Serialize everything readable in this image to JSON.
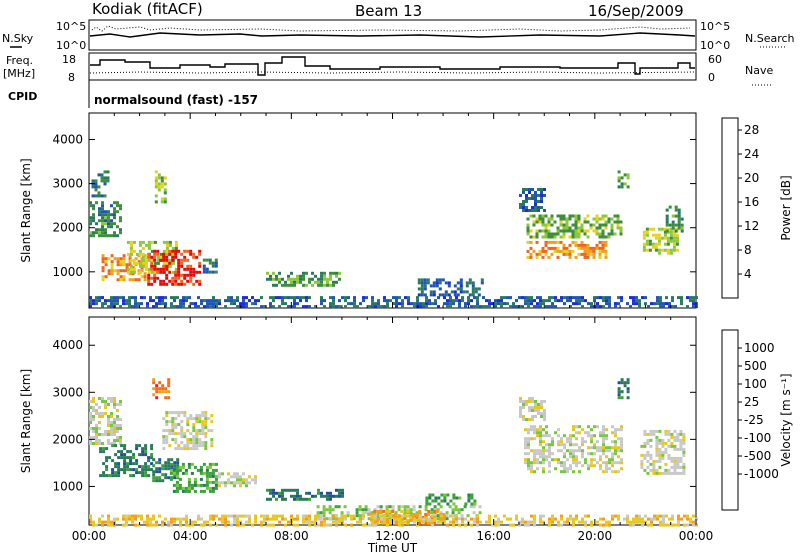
{
  "header": {
    "station": "Kodiak (fitACF)",
    "beam": "Beam 13",
    "date": "16/Sep/2009"
  },
  "summary_panel": {
    "left_label_sky": "N.Sky",
    "left_ticks_sky": [
      "10^5",
      "10^0"
    ],
    "right_label_search": "N.Search",
    "right_ticks_search": [
      "10^5",
      "10^0"
    ],
    "left_label_freq_1": "Freq.",
    "left_label_freq_2": "[MHz]",
    "left_ticks_freq": [
      "18",
      "8"
    ],
    "right_label_nave": "Nave",
    "right_ticks_nave": [
      "60",
      "0"
    ],
    "cpid_label": "CPID",
    "cpid_text": "normalsound (fast) -157"
  },
  "colors": {
    "power_scale": [
      "#1a2cdc",
      "#1f55b4",
      "#2a7a60",
      "#3e8e3e",
      "#8cc83c",
      "#e6d21e",
      "#f0a01e",
      "#f0641e",
      "#e60a0a"
    ],
    "velocity_scale": [
      "#1e28c8",
      "#2250a0",
      "#2a7a5a",
      "#3ca03c",
      "#78c83c",
      "#c8c8c8",
      "#e6c81e",
      "#f0a01e",
      "#f06e1e",
      "#e61e1e"
    ]
  },
  "chart_data": [
    {
      "type": "heatmap",
      "title": "Power",
      "xlabel": "",
      "ylabel": "Slant Range [km]",
      "xlim": [
        "00:00",
        "24:00"
      ],
      "ylim": [
        180,
        4600
      ],
      "y_ticks": [
        "4000",
        "3000",
        "2000",
        "1000"
      ],
      "colorbar_label": "Power [dB]",
      "colorbar_ticks": [
        "28",
        "24",
        "20",
        "16",
        "12",
        "8",
        "4"
      ],
      "colorbar_range": [
        0,
        30
      ],
      "regions": [
        {
          "t0": 0.5,
          "t1": 2.2,
          "r0": 800,
          "r1": 1400,
          "level": 22
        },
        {
          "t0": 1.5,
          "t1": 3.5,
          "r0": 1000,
          "r1": 1700,
          "level": 16
        },
        {
          "t0": 2.3,
          "t1": 4.4,
          "r0": 700,
          "r1": 1500,
          "level": 28
        },
        {
          "t0": 0.0,
          "t1": 1.2,
          "r0": 1800,
          "r1": 2600,
          "level": 10
        },
        {
          "t0": 0.1,
          "t1": 0.7,
          "r0": 2700,
          "r1": 3300,
          "level": 8
        },
        {
          "t0": 2.6,
          "t1": 3.0,
          "r0": 2600,
          "r1": 3300,
          "level": 16
        },
        {
          "t0": 4.5,
          "t1": 5.0,
          "r0": 1000,
          "r1": 1300,
          "level": 8
        },
        {
          "t0": 7.0,
          "t1": 10.0,
          "r0": 700,
          "r1": 1000,
          "level": 12
        },
        {
          "t0": 13.0,
          "t1": 15.5,
          "r0": 450,
          "r1": 850,
          "level": 6
        },
        {
          "t0": 17.3,
          "t1": 20.5,
          "r0": 1300,
          "r1": 1700,
          "level": 22
        },
        {
          "t0": 17.3,
          "t1": 21.0,
          "r0": 1800,
          "r1": 2300,
          "level": 14
        },
        {
          "t0": 21.9,
          "t1": 23.3,
          "r0": 1400,
          "r1": 2000,
          "level": 16
        },
        {
          "t0": 22.8,
          "t1": 23.4,
          "r0": 1900,
          "r1": 2500,
          "level": 10
        },
        {
          "t0": 17.0,
          "t1": 18.0,
          "r0": 2400,
          "r1": 2900,
          "level": 6
        },
        {
          "t0": 20.9,
          "t1": 21.3,
          "r0": 2900,
          "r1": 3300,
          "level": 12
        },
        {
          "t0": 0.0,
          "t1": 24.0,
          "r0": 200,
          "r1": 450,
          "level": 6
        }
      ]
    },
    {
      "type": "heatmap",
      "title": "Velocity",
      "xlabel": "Time UT",
      "ylabel": "Slant Range [km]",
      "xlim": [
        "00:00",
        "24:00"
      ],
      "ylim": [
        180,
        4600
      ],
      "x_ticks": [
        "00:00",
        "04:00",
        "08:00",
        "12:00",
        "16:00",
        "20:00",
        "00:00"
      ],
      "y_ticks": [
        "4000",
        "3000",
        "2000",
        "1000"
      ],
      "colorbar_label": "Velocity [m s⁻¹]",
      "colorbar_ticks": [
        "1000",
        "500",
        "100",
        "25",
        "-25",
        "-100",
        "-500",
        "-1000"
      ],
      "regions": [
        {
          "t0": 0.0,
          "t1": 1.3,
          "r0": 1900,
          "r1": 2900,
          "class": 5
        },
        {
          "t0": 0.4,
          "t1": 2.5,
          "r0": 1200,
          "r1": 1900,
          "class": 2
        },
        {
          "t0": 2.5,
          "t1": 3.5,
          "r0": 1100,
          "r1": 1600,
          "class": 2
        },
        {
          "t0": 3.2,
          "t1": 5.0,
          "r0": 900,
          "r1": 1500,
          "class": 3
        },
        {
          "t0": 2.5,
          "t1": 3.1,
          "r0": 2900,
          "r1": 3300,
          "class": 8
        },
        {
          "t0": 2.9,
          "t1": 4.8,
          "r0": 1800,
          "r1": 2600,
          "class": 5
        },
        {
          "t0": 5.1,
          "t1": 6.6,
          "r0": 1000,
          "r1": 1300,
          "class": 5
        },
        {
          "t0": 7.0,
          "t1": 10.0,
          "r0": 700,
          "r1": 950,
          "class": 2
        },
        {
          "t0": 9.0,
          "t1": 15.5,
          "r0": 300,
          "r1": 600,
          "class": 4
        },
        {
          "t0": 11.0,
          "t1": 14.0,
          "r0": 200,
          "r1": 500,
          "class": 7
        },
        {
          "t0": 13.3,
          "t1": 15.3,
          "r0": 650,
          "r1": 850,
          "class": 3
        },
        {
          "t0": 17.2,
          "t1": 21.0,
          "r0": 1300,
          "r1": 2300,
          "class": 5
        },
        {
          "t0": 21.8,
          "t1": 23.5,
          "r0": 1300,
          "r1": 2200,
          "class": 5
        },
        {
          "t0": 17.0,
          "t1": 18.0,
          "r0": 2400,
          "r1": 2900,
          "class": 5
        },
        {
          "t0": 20.9,
          "t1": 21.3,
          "r0": 2900,
          "r1": 3300,
          "class": 2
        },
        {
          "t0": 0.0,
          "t1": 24.0,
          "r0": 200,
          "r1": 400,
          "class": 6
        }
      ]
    }
  ]
}
